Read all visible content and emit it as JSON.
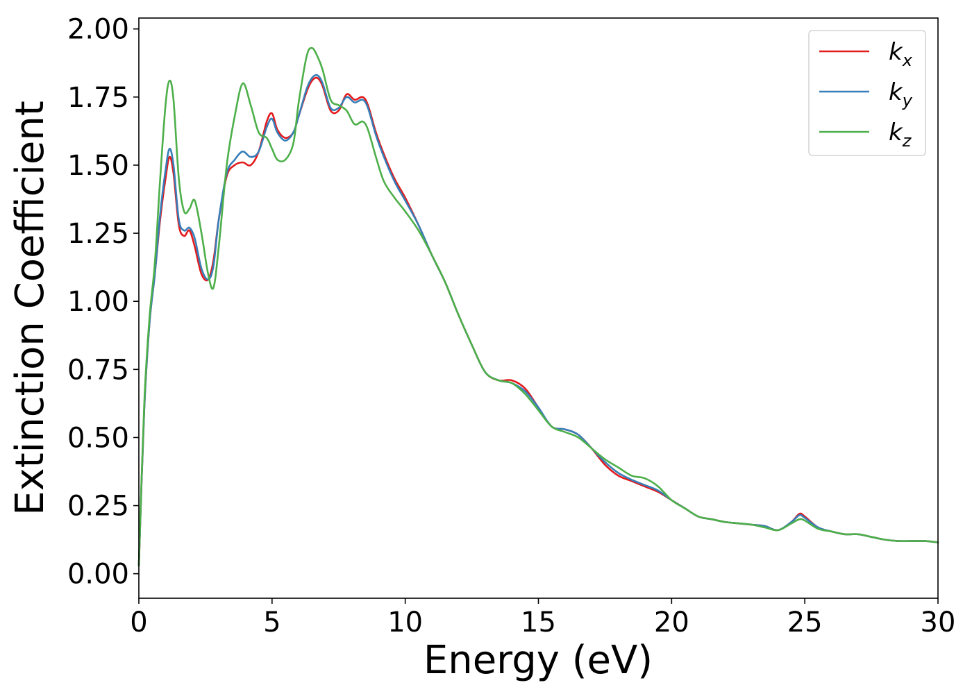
{
  "chart_data": {
    "type": "line",
    "title": "",
    "xlabel": "Energy (eV)",
    "ylabel": "Extinction Coefficient",
    "xlim": [
      0,
      30
    ],
    "ylim": [
      -0.09,
      2.04
    ],
    "xticks": [
      0,
      5,
      10,
      15,
      20,
      25,
      30
    ],
    "xtick_labels": [
      "0",
      "5",
      "10",
      "15",
      "20",
      "25",
      "30"
    ],
    "yticks": [
      0,
      0.25,
      0.5,
      0.75,
      1.0,
      1.25,
      1.5,
      1.75,
      2.0
    ],
    "ytick_labels": [
      "0.00",
      "0.25",
      "0.50",
      "0.75",
      "1.00",
      "1.25",
      "1.50",
      "1.75",
      "2.00"
    ],
    "grid": false,
    "legend_position": "top-right",
    "series": [
      {
        "name": "k_x",
        "legend_base": "k",
        "legend_sub": "x",
        "color": "#e41a1c",
        "x": [
          0,
          0.2,
          0.4,
          0.6,
          0.8,
          1.0,
          1.15,
          1.3,
          1.5,
          1.7,
          1.9,
          2.1,
          2.35,
          2.6,
          2.8,
          3.0,
          3.3,
          3.6,
          3.9,
          4.2,
          4.5,
          4.8,
          5.0,
          5.2,
          5.5,
          5.8,
          6.0,
          6.3,
          6.5,
          6.7,
          6.9,
          7.2,
          7.5,
          7.8,
          8.1,
          8.4,
          8.6,
          8.9,
          9.2,
          9.6,
          10.0,
          10.5,
          11.0,
          11.5,
          12.0,
          12.5,
          13.0,
          13.5,
          14.0,
          14.5,
          15.0,
          15.5,
          16.0,
          16.5,
          17.0,
          17.5,
          18.0,
          18.5,
          19.0,
          19.5,
          20.0,
          20.5,
          21.0,
          21.5,
          22.0,
          22.5,
          23.0,
          23.5,
          24.0,
          24.5,
          24.8,
          25.0,
          25.5,
          26.0,
          26.5,
          27.0,
          27.5,
          28.0,
          28.5,
          29.0,
          29.5,
          30.0
        ],
        "y": [
          0.03,
          0.6,
          0.92,
          1.1,
          1.3,
          1.45,
          1.53,
          1.47,
          1.28,
          1.24,
          1.26,
          1.2,
          1.1,
          1.08,
          1.15,
          1.3,
          1.46,
          1.5,
          1.51,
          1.5,
          1.55,
          1.66,
          1.69,
          1.63,
          1.6,
          1.62,
          1.68,
          1.77,
          1.81,
          1.82,
          1.79,
          1.7,
          1.7,
          1.76,
          1.74,
          1.75,
          1.72,
          1.62,
          1.54,
          1.45,
          1.38,
          1.28,
          1.17,
          1.07,
          0.95,
          0.84,
          0.74,
          0.71,
          0.71,
          0.68,
          0.61,
          0.54,
          0.53,
          0.51,
          0.46,
          0.4,
          0.36,
          0.34,
          0.32,
          0.3,
          0.27,
          0.24,
          0.21,
          0.2,
          0.19,
          0.185,
          0.18,
          0.175,
          0.16,
          0.19,
          0.22,
          0.21,
          0.17,
          0.155,
          0.145,
          0.145,
          0.135,
          0.125,
          0.12,
          0.12,
          0.12,
          0.115
        ]
      },
      {
        "name": "k_y",
        "legend_base": "k",
        "legend_sub": "y",
        "color": "#377eb8",
        "x": [
          0,
          0.2,
          0.4,
          0.6,
          0.8,
          1.0,
          1.15,
          1.3,
          1.5,
          1.7,
          1.9,
          2.1,
          2.35,
          2.6,
          2.8,
          3.0,
          3.3,
          3.6,
          3.9,
          4.2,
          4.5,
          4.8,
          5.0,
          5.2,
          5.5,
          5.8,
          6.0,
          6.3,
          6.5,
          6.7,
          6.9,
          7.2,
          7.5,
          7.8,
          8.1,
          8.4,
          8.6,
          8.9,
          9.2,
          9.6,
          10.0,
          10.5,
          11.0,
          11.5,
          12.0,
          12.5,
          13.0,
          13.5,
          14.0,
          14.5,
          15.0,
          15.5,
          16.0,
          16.5,
          17.0,
          17.5,
          18.0,
          18.5,
          19.0,
          19.5,
          20.0,
          20.5,
          21.0,
          21.5,
          22.0,
          22.5,
          23.0,
          23.5,
          24.0,
          24.5,
          24.8,
          25.0,
          25.5,
          26.0,
          26.5,
          27.0,
          27.5,
          28.0,
          28.5,
          29.0,
          29.5,
          30.0
        ],
        "y": [
          0.03,
          0.6,
          0.92,
          1.1,
          1.32,
          1.48,
          1.56,
          1.5,
          1.3,
          1.26,
          1.27,
          1.23,
          1.12,
          1.08,
          1.13,
          1.3,
          1.47,
          1.52,
          1.55,
          1.53,
          1.55,
          1.64,
          1.67,
          1.62,
          1.59,
          1.62,
          1.68,
          1.78,
          1.82,
          1.83,
          1.8,
          1.71,
          1.71,
          1.75,
          1.73,
          1.74,
          1.71,
          1.61,
          1.53,
          1.44,
          1.37,
          1.28,
          1.17,
          1.07,
          0.95,
          0.84,
          0.74,
          0.71,
          0.7,
          0.67,
          0.61,
          0.54,
          0.53,
          0.51,
          0.46,
          0.41,
          0.37,
          0.345,
          0.325,
          0.305,
          0.27,
          0.24,
          0.21,
          0.2,
          0.19,
          0.185,
          0.18,
          0.175,
          0.16,
          0.19,
          0.215,
          0.205,
          0.17,
          0.155,
          0.145,
          0.145,
          0.135,
          0.125,
          0.12,
          0.12,
          0.12,
          0.115
        ]
      },
      {
        "name": "k_z",
        "legend_base": "k",
        "legend_sub": "z",
        "color": "#4daf4a",
        "x": [
          0,
          0.2,
          0.4,
          0.6,
          0.8,
          1.0,
          1.15,
          1.3,
          1.5,
          1.7,
          1.9,
          2.1,
          2.35,
          2.6,
          2.8,
          3.0,
          3.3,
          3.6,
          3.9,
          4.2,
          4.5,
          4.8,
          5.0,
          5.2,
          5.5,
          5.8,
          6.0,
          6.3,
          6.5,
          6.7,
          6.9,
          7.2,
          7.5,
          7.8,
          8.1,
          8.4,
          8.6,
          8.9,
          9.2,
          9.6,
          10.0,
          10.5,
          11.0,
          11.5,
          12.0,
          12.5,
          13.0,
          13.5,
          14.0,
          14.5,
          15.0,
          15.5,
          16.0,
          16.5,
          17.0,
          17.5,
          18.0,
          18.5,
          19.0,
          19.5,
          20.0,
          20.5,
          21.0,
          21.5,
          22.0,
          22.5,
          23.0,
          23.5,
          24.0,
          24.5,
          24.8,
          25.0,
          25.5,
          26.0,
          26.5,
          27.0,
          27.5,
          28.0,
          28.5,
          29.0,
          29.5,
          30.0
        ],
        "y": [
          0.03,
          0.62,
          0.94,
          1.14,
          1.45,
          1.72,
          1.81,
          1.74,
          1.45,
          1.33,
          1.34,
          1.37,
          1.25,
          1.1,
          1.05,
          1.2,
          1.5,
          1.68,
          1.8,
          1.72,
          1.62,
          1.6,
          1.56,
          1.52,
          1.52,
          1.58,
          1.73,
          1.9,
          1.93,
          1.9,
          1.85,
          1.74,
          1.72,
          1.7,
          1.65,
          1.66,
          1.63,
          1.53,
          1.44,
          1.38,
          1.33,
          1.26,
          1.17,
          1.07,
          0.95,
          0.84,
          0.74,
          0.71,
          0.7,
          0.66,
          0.6,
          0.54,
          0.52,
          0.5,
          0.46,
          0.42,
          0.39,
          0.36,
          0.35,
          0.32,
          0.27,
          0.24,
          0.21,
          0.2,
          0.19,
          0.185,
          0.18,
          0.17,
          0.16,
          0.185,
          0.2,
          0.195,
          0.165,
          0.155,
          0.145,
          0.145,
          0.135,
          0.125,
          0.12,
          0.12,
          0.12,
          0.115
        ]
      }
    ]
  }
}
